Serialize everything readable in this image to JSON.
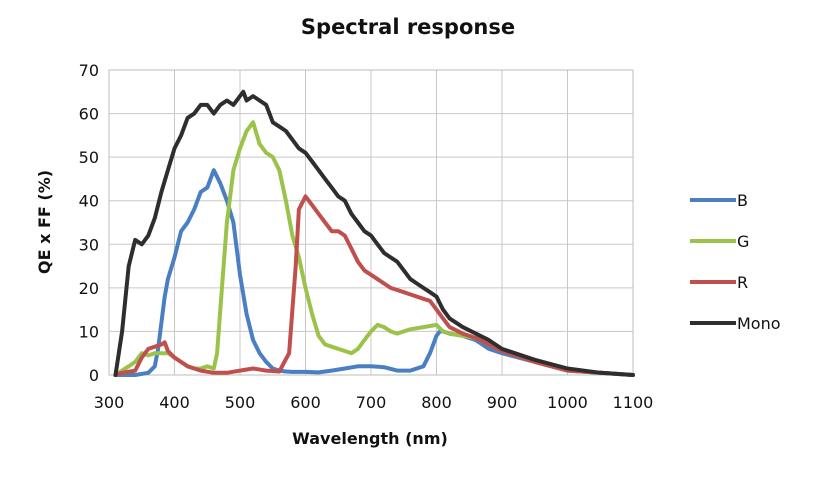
{
  "chart_data": {
    "type": "line",
    "title": "Spectral response",
    "xlabel": "Wavelength (nm)",
    "ylabel": "QE x FF (%)",
    "xlim": [
      300,
      1100
    ],
    "ylim": [
      0,
      70
    ],
    "xticks": [
      "300",
      "400",
      "500",
      "600",
      "700",
      "800",
      "900",
      "1000",
      "1100"
    ],
    "yticks": [
      "0",
      "10",
      "20",
      "30",
      "40",
      "50",
      "60",
      "70"
    ],
    "grid": true,
    "legend_position": "right",
    "series": [
      {
        "name": "B",
        "color": "#4a7fc1",
        "x": [
          310,
          340,
          360,
          370,
          375,
          380,
          385,
          390,
          400,
          410,
          420,
          430,
          440,
          450,
          460,
          470,
          480,
          490,
          500,
          510,
          520,
          530,
          540,
          550,
          560,
          570,
          580,
          600,
          620,
          640,
          660,
          680,
          700,
          720,
          740,
          760,
          780,
          790,
          800,
          805,
          810,
          820,
          840,
          860,
          880,
          900,
          950,
          1000,
          1050,
          1100
        ],
        "y": [
          0,
          0,
          0.5,
          2,
          6,
          12,
          18,
          22,
          27,
          33,
          35,
          38,
          42,
          43,
          47,
          44,
          40,
          35,
          23,
          14,
          8,
          5,
          3,
          1.5,
          1,
          0.8,
          0.7,
          0.7,
          0.6,
          1,
          1.5,
          2,
          2,
          1.8,
          1,
          1,
          2,
          5,
          9,
          10,
          10,
          9.5,
          9,
          8,
          6,
          5,
          3,
          1,
          0.5,
          0
        ]
      },
      {
        "name": "G",
        "color": "#9bc34a",
        "x": [
          310,
          320,
          330,
          340,
          350,
          360,
          370,
          380,
          390,
          400,
          410,
          420,
          430,
          440,
          450,
          460,
          465,
          470,
          480,
          490,
          500,
          510,
          520,
          530,
          540,
          550,
          560,
          570,
          580,
          590,
          600,
          610,
          620,
          630,
          640,
          650,
          660,
          670,
          680,
          690,
          700,
          710,
          720,
          730,
          740,
          750,
          760,
          780,
          800,
          810,
          820,
          840,
          860,
          880,
          900,
          950,
          1000,
          1050,
          1100
        ],
        "y": [
          0,
          1,
          2,
          3,
          5,
          4.5,
          5,
          5,
          5,
          4,
          3,
          2,
          1.5,
          1.5,
          2,
          1.5,
          5,
          15,
          35,
          47,
          52,
          56,
          58,
          53,
          51,
          50,
          47,
          40,
          32,
          27,
          20,
          14,
          9,
          7,
          6.5,
          6,
          5.5,
          5,
          6,
          8,
          10,
          11.5,
          11,
          10,
          9.5,
          10,
          10.5,
          11,
          11.5,
          10,
          9.5,
          9,
          8.5,
          7,
          5.5,
          3,
          1,
          0.5,
          0
        ]
      },
      {
        "name": "R",
        "color": "#c0504d",
        "x": [
          310,
          320,
          340,
          350,
          360,
          370,
          380,
          385,
          390,
          400,
          410,
          420,
          440,
          460,
          480,
          500,
          520,
          540,
          560,
          575,
          585,
          590,
          600,
          610,
          620,
          630,
          640,
          650,
          660,
          670,
          680,
          690,
          700,
          710,
          720,
          730,
          740,
          750,
          760,
          770,
          780,
          790,
          800,
          810,
          820,
          840,
          860,
          880,
          900,
          950,
          1000,
          1050,
          1100
        ],
        "y": [
          0,
          0.5,
          1,
          4,
          6,
          6.5,
          7,
          7.5,
          5.5,
          4,
          3,
          2,
          1,
          0.5,
          0.5,
          1,
          1.5,
          1,
          0.8,
          5,
          25,
          38,
          41,
          39,
          37,
          35,
          33,
          33,
          32,
          29,
          26,
          24,
          23,
          22,
          21,
          20,
          19.5,
          19,
          18.5,
          18,
          17.5,
          17,
          15,
          13,
          11,
          9.5,
          8.5,
          7,
          5.5,
          3,
          1,
          0.5,
          0
        ]
      },
      {
        "name": "Mono",
        "color": "#2e2e2e",
        "x": [
          310,
          320,
          330,
          340,
          350,
          360,
          370,
          380,
          390,
          400,
          410,
          420,
          430,
          440,
          450,
          460,
          470,
          480,
          490,
          500,
          505,
          510,
          520,
          530,
          540,
          550,
          560,
          570,
          580,
          590,
          600,
          610,
          620,
          630,
          640,
          650,
          660,
          670,
          680,
          690,
          700,
          710,
          720,
          730,
          740,
          750,
          760,
          770,
          780,
          790,
          800,
          810,
          820,
          840,
          860,
          880,
          900,
          950,
          1000,
          1050,
          1100
        ],
        "y": [
          0,
          10,
          25,
          31,
          30,
          32,
          36,
          42,
          47,
          52,
          55,
          59,
          60,
          62,
          62,
          60,
          62,
          63,
          62,
          64,
          65,
          63,
          64,
          63,
          62,
          58,
          57,
          56,
          54,
          52,
          51,
          49,
          47,
          45,
          43,
          41,
          40,
          37,
          35,
          33,
          32,
          30,
          28,
          27,
          26,
          24,
          22,
          21,
          20,
          19,
          18,
          15,
          13,
          11,
          9.5,
          8,
          6,
          3.5,
          1.5,
          0.5,
          0
        ]
      }
    ]
  }
}
